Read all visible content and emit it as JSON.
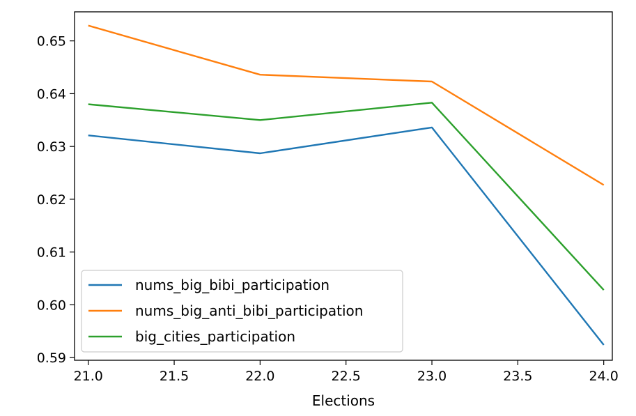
{
  "chart_data": {
    "type": "line",
    "title": "",
    "xlabel": "Elections",
    "ylabel": "",
    "x": [
      21.0,
      22.0,
      23.0,
      24.0
    ],
    "xlim": [
      20.92,
      24.05
    ],
    "ylim": [
      0.5895,
      0.6555
    ],
    "xticks": [
      21.0,
      21.5,
      22.0,
      22.5,
      23.0,
      23.5,
      24.0
    ],
    "xtick_labels": [
      "21.0",
      "21.5",
      "22.0",
      "22.5",
      "23.0",
      "23.5",
      "24.0"
    ],
    "yticks": [
      0.59,
      0.6,
      0.61,
      0.62,
      0.63,
      0.64,
      0.65
    ],
    "ytick_labels": [
      "0.59",
      "0.60",
      "0.61",
      "0.62",
      "0.63",
      "0.64",
      "0.65"
    ],
    "grid": false,
    "legend_position": "lower-left",
    "series": [
      {
        "name": "nums_big_bibi_participation",
        "color": "#1f77b4",
        "values": [
          0.6321,
          0.6287,
          0.6336,
          0.5924
        ]
      },
      {
        "name": "nums_big_anti_bibi_participation",
        "color": "#ff7f0e",
        "values": [
          0.6529,
          0.6436,
          0.6423,
          0.6227
        ]
      },
      {
        "name": "big_cities_participation",
        "color": "#2ca02c",
        "values": [
          0.638,
          0.635,
          0.6383,
          0.6028
        ]
      }
    ]
  }
}
